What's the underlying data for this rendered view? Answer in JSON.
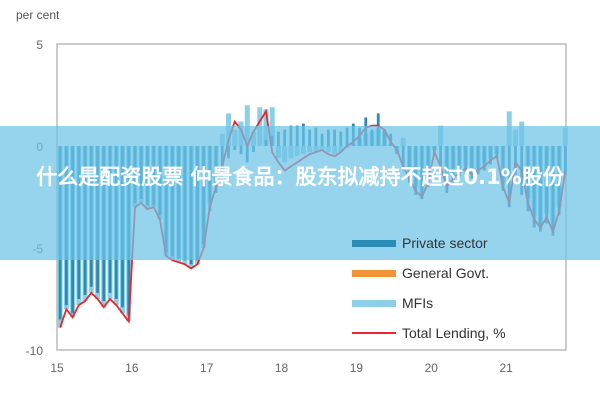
{
  "chart_data": {
    "type": "bar",
    "unit_label": "per cent",
    "x_ticks": [
      "15",
      "16",
      "17",
      "18",
      "19",
      "20",
      "21"
    ],
    "y_ticks": [
      "5",
      "0",
      "-5",
      "-10"
    ],
    "ylim": [
      -10,
      5
    ],
    "xlim": [
      2015,
      2021.8
    ],
    "x_start": "2015-01",
    "frequency": "monthly",
    "grid": false,
    "legend_position": "bottom-right",
    "series": [
      {
        "name": "Private sector",
        "type": "bar",
        "color": "#2a8bb5",
        "values": [
          -8.5,
          -7.8,
          -8.2,
          -7.5,
          -7.3,
          -6.9,
          -7.2,
          -7.6,
          -7.2,
          -7.5,
          -7.9,
          -8.3,
          -2.8,
          -2.6,
          -2.9,
          -2.9,
          -3.4,
          -5.2,
          -5.4,
          -5.5,
          -5.6,
          -5.8,
          -5.6,
          -4.8,
          -3.2,
          -2.3,
          -1.5,
          -0.6,
          -0.2,
          -0.4,
          -0.8,
          -0.3,
          0.0,
          0.3,
          0.5,
          0.7,
          0.8,
          1.0,
          1.0,
          1.1,
          0.8,
          0.9,
          0.6,
          0.8,
          0.8,
          0.7,
          0.9,
          1.1,
          0.9,
          1.4,
          0.8,
          1.6,
          0.8,
          0.6,
          -0.4,
          -1.2,
          -1.8,
          -2.4,
          -2.6,
          -2.0,
          -0.5,
          -1.2,
          -2.3,
          -1.8,
          -1.5,
          -1.3,
          -1.6,
          -1.4,
          -1.2,
          -0.9,
          -0.6,
          -2.2,
          -3.0,
          -1.4,
          -2.4,
          -3.2,
          -4.0,
          -4.2,
          -3.8,
          -4.4,
          -3.4,
          -1.4
        ]
      },
      {
        "name": "General Govt.",
        "type": "bar",
        "color": "#f39237",
        "values": []
      },
      {
        "name": "MFIs",
        "type": "bar",
        "color": "#8ccfe6",
        "values": [
          -8.9,
          -8.0,
          -8.4,
          -7.8,
          -7.6,
          -7.2,
          -7.5,
          -7.9,
          -7.5,
          -7.8,
          -8.2,
          -8.6,
          -3.0,
          -2.8,
          -3.1,
          -3.0,
          -3.6,
          -5.4,
          -5.6,
          -5.7,
          -5.8,
          -6.0,
          -5.8,
          -5.0,
          -2.8,
          -1.8,
          0.6,
          1.6,
          0.8,
          1.2,
          2.0,
          0.7,
          1.9,
          1.8,
          1.9,
          -0.6,
          -0.8,
          -0.6,
          -0.5,
          -0.4,
          -0.3,
          -0.3,
          -0.2,
          -0.3,
          -0.4,
          -0.3,
          -0.1,
          0.1,
          0.4,
          0.6,
          0.7,
          0.9,
          0.7,
          0.1,
          -0.3,
          0.4,
          -1.5,
          -2.0,
          -2.3,
          -1.6,
          -0.2,
          1.0,
          -1.8,
          -1.5,
          -1.2,
          -1.0,
          -1.3,
          -1.1,
          -0.9,
          -0.6,
          -0.4,
          -1.9,
          1.7,
          0.8,
          1.2,
          -2.6,
          -3.4,
          -3.8,
          -3.3,
          -4.0,
          -3.0,
          0.9
        ]
      },
      {
        "name": "Total Lending, %",
        "type": "line",
        "color": "#e8262b",
        "values": [
          -8.9,
          -8.0,
          -8.4,
          -7.8,
          -7.6,
          -7.2,
          -7.5,
          -7.9,
          -7.5,
          -7.8,
          -8.2,
          -8.6,
          -3.0,
          -2.8,
          -3.1,
          -3.0,
          -3.6,
          -5.4,
          -5.6,
          -5.7,
          -5.8,
          -6.0,
          -5.8,
          -5.0,
          -3.0,
          -2.0,
          -1.0,
          0.3,
          1.2,
          0.8,
          0.0,
          0.7,
          1.2,
          1.7,
          -0.3,
          -0.8,
          -1.2,
          -1.0,
          -0.8,
          -0.6,
          -0.4,
          -0.3,
          -0.2,
          -0.4,
          -0.5,
          -0.3,
          0.0,
          0.2,
          0.5,
          0.9,
          1.0,
          1.0,
          0.8,
          0.2,
          -0.2,
          -1.0,
          -1.6,
          -2.2,
          -2.5,
          -1.8,
          -0.3,
          -1.0,
          -2.0,
          -1.6,
          -1.3,
          -1.1,
          -1.4,
          -1.2,
          -1.0,
          -0.7,
          -0.5,
          -2.0,
          -2.8,
          -0.8,
          -1.2,
          -2.8,
          -3.6,
          -4.0,
          -3.5,
          -4.2,
          -3.2,
          -1.2
        ]
      }
    ]
  },
  "overlay": {
    "headline": "什么是配资股票 仲景食品：股东拟减持不超过0.1%股份"
  }
}
